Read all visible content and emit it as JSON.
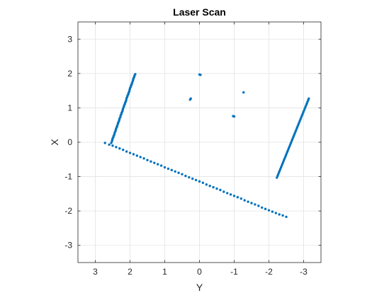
{
  "chart_data": {
    "type": "scatter",
    "title": "Laser Scan",
    "xlabel": "Y",
    "ylabel": "X",
    "xlim": [
      3.5,
      -3.5
    ],
    "ylim": [
      -3.5,
      3.5
    ],
    "x_reversed": true,
    "grid": true,
    "xticks": [
      3,
      2,
      1,
      0,
      -1,
      -2,
      -3
    ],
    "yticks": [
      3,
      2,
      1,
      0,
      -1,
      -2,
      -3
    ],
    "xtick_labels": [
      "3",
      "2",
      "1",
      "0",
      "-1",
      "-2",
      "-3"
    ],
    "ytick_labels": [
      "3",
      "2",
      "1",
      "0",
      "-1",
      "-2",
      "-3"
    ],
    "marker_color": "#0072BD",
    "series": [
      {
        "points": [
          [
            1.85,
            1.98
          ],
          [
            1.87,
            1.94
          ],
          [
            1.88,
            1.9
          ],
          [
            1.9,
            1.86
          ],
          [
            1.91,
            1.82
          ],
          [
            1.92,
            1.78
          ],
          [
            1.94,
            1.73
          ],
          [
            1.95,
            1.69
          ],
          [
            1.97,
            1.65
          ],
          [
            1.98,
            1.61
          ],
          [
            2.0,
            1.57
          ],
          [
            2.01,
            1.53
          ],
          [
            2.02,
            1.48
          ],
          [
            2.04,
            1.44
          ],
          [
            2.05,
            1.4
          ],
          [
            2.07,
            1.36
          ],
          [
            2.08,
            1.32
          ],
          [
            2.1,
            1.28
          ],
          [
            2.11,
            1.23
          ],
          [
            2.12,
            1.19
          ],
          [
            2.14,
            1.15
          ],
          [
            2.15,
            1.11
          ],
          [
            2.17,
            1.07
          ],
          [
            2.18,
            1.03
          ],
          [
            2.2,
            0.98
          ],
          [
            2.21,
            0.94
          ],
          [
            2.22,
            0.9
          ],
          [
            2.24,
            0.86
          ],
          [
            2.25,
            0.82
          ],
          [
            2.27,
            0.78
          ],
          [
            2.28,
            0.73
          ],
          [
            2.3,
            0.69
          ],
          [
            2.31,
            0.65
          ],
          [
            2.32,
            0.61
          ],
          [
            2.34,
            0.57
          ],
          [
            2.35,
            0.53
          ],
          [
            2.37,
            0.48
          ],
          [
            2.38,
            0.44
          ],
          [
            2.4,
            0.4
          ],
          [
            2.41,
            0.36
          ],
          [
            2.42,
            0.32
          ],
          [
            2.44,
            0.28
          ],
          [
            2.45,
            0.23
          ],
          [
            2.47,
            0.19
          ],
          [
            2.48,
            0.15
          ],
          [
            2.5,
            0.11
          ],
          [
            2.51,
            0.07
          ],
          [
            2.52,
            0.03
          ],
          [
            2.54,
            -0.02
          ]
        ]
      },
      {
        "points": [
          [
            2.72,
            -0.02
          ],
          [
            2.6,
            -0.07
          ],
          [
            2.5,
            -0.1
          ],
          [
            2.4,
            -0.14
          ],
          [
            2.3,
            -0.18
          ],
          [
            2.2,
            -0.22
          ],
          [
            2.1,
            -0.27
          ],
          [
            2.0,
            -0.31
          ],
          [
            1.9,
            -0.35
          ],
          [
            1.8,
            -0.39
          ],
          [
            1.7,
            -0.43
          ],
          [
            1.6,
            -0.47
          ],
          [
            1.5,
            -0.52
          ],
          [
            1.4,
            -0.56
          ],
          [
            1.3,
            -0.6
          ],
          [
            1.2,
            -0.64
          ],
          [
            1.1,
            -0.68
          ],
          [
            1.0,
            -0.73
          ],
          [
            0.9,
            -0.77
          ],
          [
            0.8,
            -0.81
          ],
          [
            0.7,
            -0.85
          ],
          [
            0.6,
            -0.89
          ],
          [
            0.5,
            -0.93
          ],
          [
            0.4,
            -0.98
          ],
          [
            0.3,
            -1.02
          ],
          [
            0.2,
            -1.06
          ],
          [
            0.1,
            -1.1
          ],
          [
            0.0,
            -1.14
          ],
          [
            -0.1,
            -1.18
          ],
          [
            -0.2,
            -1.23
          ],
          [
            -0.3,
            -1.27
          ],
          [
            -0.4,
            -1.31
          ],
          [
            -0.5,
            -1.35
          ],
          [
            -0.6,
            -1.39
          ],
          [
            -0.7,
            -1.44
          ],
          [
            -0.8,
            -1.48
          ],
          [
            -0.9,
            -1.52
          ],
          [
            -1.0,
            -1.56
          ],
          [
            -1.1,
            -1.6
          ],
          [
            -1.2,
            -1.64
          ],
          [
            -1.3,
            -1.69
          ],
          [
            -1.4,
            -1.73
          ],
          [
            -1.5,
            -1.77
          ],
          [
            -1.6,
            -1.81
          ],
          [
            -1.7,
            -1.85
          ],
          [
            -1.8,
            -1.9
          ],
          [
            -1.9,
            -1.94
          ],
          [
            -2.0,
            -1.98
          ],
          [
            -2.1,
            -2.02
          ],
          [
            -2.2,
            -2.06
          ],
          [
            -2.3,
            -2.1
          ],
          [
            -2.4,
            -2.13
          ],
          [
            -2.5,
            -2.17
          ]
        ]
      },
      {
        "points": [
          [
            -3.15,
            1.27
          ],
          [
            -3.13,
            1.22
          ],
          [
            -3.11,
            1.17
          ],
          [
            -3.09,
            1.12
          ],
          [
            -3.07,
            1.07
          ],
          [
            -3.05,
            1.02
          ],
          [
            -3.03,
            0.97
          ],
          [
            -3.01,
            0.92
          ],
          [
            -2.99,
            0.87
          ],
          [
            -2.97,
            0.82
          ],
          [
            -2.95,
            0.77
          ],
          [
            -2.93,
            0.72
          ],
          [
            -2.91,
            0.67
          ],
          [
            -2.89,
            0.62
          ],
          [
            -2.87,
            0.57
          ],
          [
            -2.85,
            0.52
          ],
          [
            -2.83,
            0.47
          ],
          [
            -2.81,
            0.42
          ],
          [
            -2.79,
            0.37
          ],
          [
            -2.77,
            0.32
          ],
          [
            -2.75,
            0.27
          ],
          [
            -2.73,
            0.22
          ],
          [
            -2.71,
            0.17
          ],
          [
            -2.69,
            0.12
          ],
          [
            -2.67,
            0.07
          ],
          [
            -2.65,
            0.02
          ],
          [
            -2.63,
            -0.03
          ],
          [
            -2.61,
            -0.08
          ],
          [
            -2.59,
            -0.13
          ],
          [
            -2.57,
            -0.18
          ],
          [
            -2.55,
            -0.23
          ],
          [
            -2.53,
            -0.28
          ],
          [
            -2.51,
            -0.33
          ],
          [
            -2.49,
            -0.38
          ],
          [
            -2.47,
            -0.43
          ],
          [
            -2.45,
            -0.48
          ],
          [
            -2.43,
            -0.53
          ],
          [
            -2.41,
            -0.58
          ],
          [
            -2.39,
            -0.63
          ],
          [
            -2.37,
            -0.68
          ],
          [
            -2.35,
            -0.73
          ],
          [
            -2.33,
            -0.78
          ],
          [
            -2.31,
            -0.83
          ],
          [
            -2.29,
            -0.88
          ],
          [
            -2.27,
            -0.93
          ],
          [
            -2.25,
            -0.98
          ],
          [
            -2.23,
            -1.03
          ]
        ]
      },
      {
        "points": [
          [
            0.0,
            1.97
          ],
          [
            -0.03,
            1.96
          ],
          [
            0.27,
            1.24
          ],
          [
            0.25,
            1.27
          ],
          [
            -1.27,
            1.45
          ],
          [
            -0.97,
            0.76
          ],
          [
            -1.0,
            0.75
          ]
        ]
      }
    ]
  }
}
